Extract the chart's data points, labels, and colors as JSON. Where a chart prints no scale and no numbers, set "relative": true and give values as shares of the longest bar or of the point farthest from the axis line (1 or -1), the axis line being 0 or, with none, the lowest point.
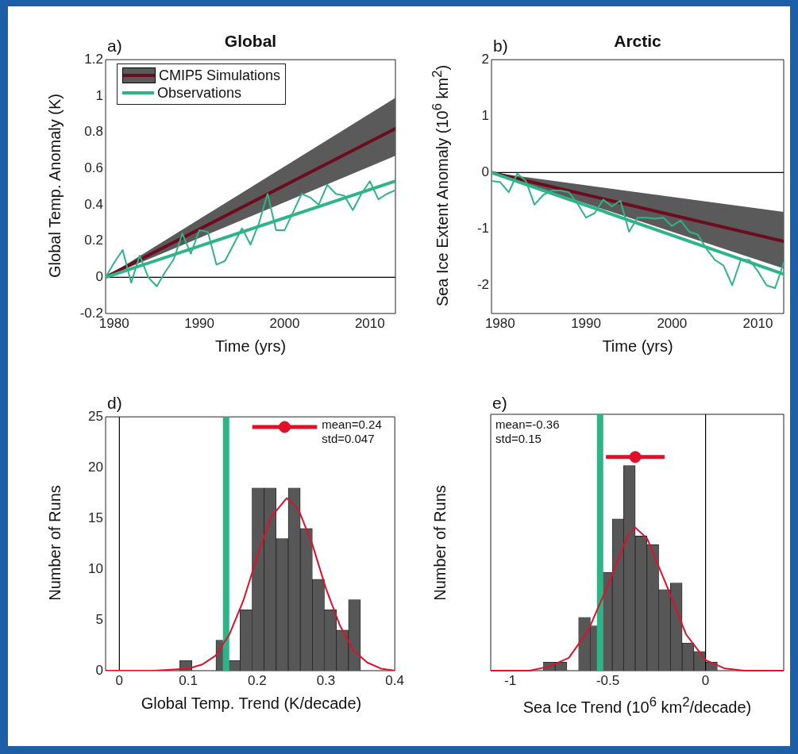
{
  "chart_data": [
    {
      "type": "line",
      "title": "Global",
      "xlabel": "Time (yrs)",
      "ylabel": "Global Temp. Anomaly (K)",
      "annotations": [
        "a)"
      ],
      "legend": "top left",
      "grid": false,
      "xlim": [
        1979,
        2013
      ],
      "xticks": [
        1980,
        1990,
        2000,
        2010
      ],
      "ylim": [
        -0.2,
        1.2
      ],
      "yticks": [
        -0.2,
        0,
        0.2,
        0.4,
        0.6,
        0.8,
        1,
        1.2
      ],
      "ref_lines": [
        {
          "axis": "y",
          "value": 0,
          "color": "#000000"
        }
      ],
      "x": [
        1979,
        1980,
        1981,
        1982,
        1983,
        1984,
        1985,
        1986,
        1987,
        1988,
        1989,
        1990,
        1991,
        1992,
        1993,
        1994,
        1995,
        1996,
        1997,
        1998,
        1999,
        2000,
        2001,
        2002,
        2003,
        2004,
        2005,
        2006,
        2007,
        2008,
        2009,
        2010,
        2011,
        2012,
        2013
      ],
      "series": [
        {
          "name": "CMIP5 Simulations",
          "type": "line",
          "x": [
            1979,
            2013
          ],
          "values": [
            0,
            0.82
          ],
          "lower": [
            0,
            0.67
          ],
          "upper": [
            0,
            0.99
          ],
          "color": "#6d0b1f"
        },
        {
          "name": "Observations",
          "type": "line",
          "values": [
            0,
            0.08,
            0.15,
            -0.03,
            0.12,
            0,
            -0.05,
            0.03,
            0.1,
            0.24,
            0.13,
            0.26,
            0.25,
            0.07,
            0.09,
            0.18,
            0.27,
            0.18,
            0.3,
            0.46,
            0.26,
            0.26,
            0.36,
            0.46,
            0.44,
            0.4,
            0.51,
            0.46,
            0.45,
            0.37,
            0.46,
            0.53,
            0.43,
            0.46,
            0.48
          ],
          "color": "#2fb487"
        },
        {
          "type": "line",
          "x": [
            1979,
            2013
          ],
          "values": [
            0,
            0.53
          ],
          "color": "#2fb487"
        }
      ]
    },
    {
      "type": "line",
      "title": "Arctic",
      "xlabel": "Time (yrs)",
      "ylabel": "Sea Ice Extent Anomaly (10$^{6}$ km$^{2}$)",
      "annotations": [
        "b)"
      ],
      "grid": false,
      "xlim": [
        1979,
        2013
      ],
      "xticks": [
        1980,
        1990,
        2000,
        2010
      ],
      "ylim": [
        -2.5,
        2
      ],
      "yticks": [
        -2,
        -1,
        0,
        1,
        2
      ],
      "ref_lines": [
        {
          "axis": "y",
          "value": 0,
          "color": "#000000"
        }
      ],
      "x": [
        1979,
        1980,
        1981,
        1982,
        1983,
        1984,
        1985,
        1986,
        1987,
        1988,
        1989,
        1990,
        1991,
        1992,
        1993,
        1994,
        1995,
        1996,
        1997,
        1998,
        1999,
        2000,
        2001,
        2002,
        2003,
        2004,
        2005,
        2006,
        2007,
        2008,
        2009,
        2010,
        2011,
        2012,
        2013
      ],
      "series": [
        {
          "type": "line",
          "x": [
            1979,
            2013
          ],
          "values": [
            0,
            -1.22
          ],
          "lower": [
            0,
            -1.7
          ],
          "upper": [
            0,
            -0.7
          ],
          "color": "#6d0b1f"
        },
        {
          "type": "line",
          "values": [
            -0.15,
            -0.17,
            -0.35,
            -0.02,
            -0.15,
            -0.57,
            -0.4,
            -0.32,
            -0.32,
            -0.35,
            -0.55,
            -0.8,
            -0.72,
            -0.48,
            -0.6,
            -0.5,
            -1.05,
            -0.8,
            -0.8,
            -0.82,
            -0.8,
            -0.95,
            -0.85,
            -1.05,
            -1.1,
            -1.35,
            -1.55,
            -1.65,
            -2.0,
            -1.55,
            -1.55,
            -1.75,
            -2.0,
            -2.05,
            -1.6
          ],
          "color": "#2fb487"
        },
        {
          "type": "line",
          "x": [
            1979,
            2013
          ],
          "values": [
            0,
            -1.8
          ],
          "color": "#2fb487"
        }
      ]
    },
    {
      "type": "histogram",
      "xlabel": "Global Temp. Trend (K/decade)",
      "ylabel": "Number of Runs",
      "annotations": [
        "d)",
        "mean=0.24",
        "std=0.047"
      ],
      "grid": false,
      "xlim": [
        -0.02,
        0.4
      ],
      "xticks": [
        0,
        0.1,
        0.2,
        0.3,
        0.4
      ],
      "ylim": [
        0,
        25
      ],
      "yticks": [
        0,
        5,
        10,
        15,
        20,
        25
      ],
      "bins": [
        0.088,
        0.105,
        0.123,
        0.14,
        0.158,
        0.175,
        0.193,
        0.21,
        0.228,
        0.245,
        0.263,
        0.28,
        0.298,
        0.315,
        0.333,
        0.35
      ],
      "values": [
        1,
        0,
        0,
        3,
        1,
        6,
        18,
        18,
        13,
        18,
        14,
        9,
        6,
        4,
        7
      ],
      "color": "#575757",
      "ref_lines": [
        {
          "axis": "x",
          "value": 0,
          "color": "#000000"
        },
        {
          "axis": "x",
          "value": 0.155,
          "color": "#2fb487"
        }
      ],
      "series": [
        {
          "type": "line",
          "x": [
            -0.02,
            0.05,
            0.1,
            0.12,
            0.14,
            0.16,
            0.18,
            0.2,
            0.22,
            0.243,
            0.26,
            0.28,
            0.3,
            0.32,
            0.34,
            0.36,
            0.38,
            0.4
          ],
          "values": [
            0,
            0,
            0.2,
            0.6,
            1.5,
            3.6,
            6.9,
            11.2,
            15.1,
            17,
            15.9,
            12.5,
            8.1,
            4.5,
            2,
            0.8,
            0.2,
            0
          ],
          "color": "#e0102a"
        },
        {
          "type": "scatter",
          "x": [
            0.24
          ],
          "values": [
            24
          ],
          "xerrors": [
            0.047
          ],
          "color": "#e0102a"
        }
      ]
    },
    {
      "type": "histogram",
      "relative": true,
      "tick_labels": "x",
      "xlabel": "Sea Ice Trend (10$^{6}$ km$^{2}$/decade)",
      "ylabel": "Number of Runs",
      "annotations": [
        "e)",
        "mean=-0.36",
        "std=0.15"
      ],
      "grid": false,
      "xlim": [
        -1.1,
        0.4
      ],
      "xticks": [
        -1,
        -0.5,
        0
      ],
      "bins": [
        -0.83,
        -0.77,
        -0.71,
        -0.65,
        -0.59,
        -0.53,
        -0.48,
        -0.42,
        -0.36,
        -0.3,
        -0.24,
        -0.18,
        -0.12,
        -0.06,
        0,
        0.06
      ],
      "values": [
        0.04,
        0.04,
        0,
        0.25,
        0.21,
        0.46,
        0.71,
        0.96,
        0.63,
        0.59,
        0.38,
        0.41,
        0.13,
        0.09,
        0.04
      ],
      "color": "#575757",
      "ref_lines": [
        {
          "axis": "x",
          "value": 0,
          "color": "#000000"
        },
        {
          "axis": "x",
          "value": -0.54,
          "color": "#2fb487"
        }
      ],
      "series": [
        {
          "type": "line",
          "x": [
            -1.1,
            -0.9,
            -0.8,
            -0.7,
            -0.6,
            -0.5,
            -0.4,
            -0.36,
            -0.3,
            -0.2,
            -0.1,
            0,
            0.1,
            0.2,
            0.4
          ],
          "values": [
            0,
            0,
            0.02,
            0.06,
            0.19,
            0.4,
            0.63,
            0.67,
            0.62,
            0.4,
            0.17,
            0.05,
            0.01,
            0,
            0
          ],
          "color": "#e0102a"
        },
        {
          "type": "scatter",
          "x": [
            -0.36
          ],
          "values": [
            1
          ],
          "xerrors": [
            0.15
          ],
          "color": "#e0102a"
        }
      ]
    }
  ]
}
